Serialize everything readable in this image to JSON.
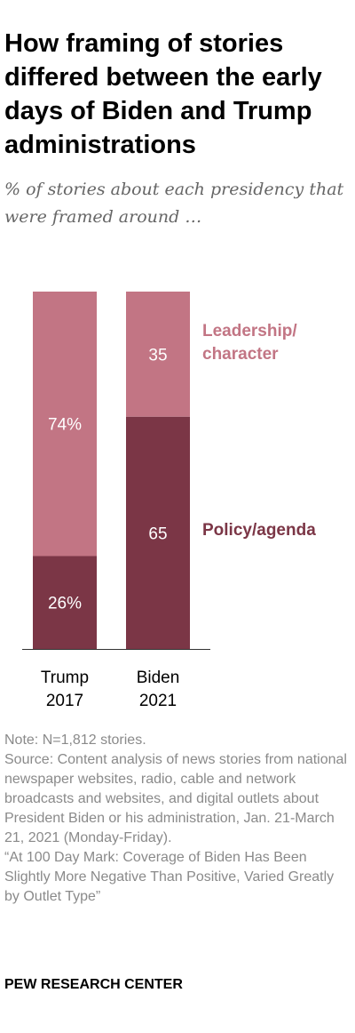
{
  "title": "How framing of stories differed between the early days of Biden and Trump administrations",
  "subtitle": "% of stories about each presidency that were framed around …",
  "chart_data": {
    "type": "bar",
    "stacked": true,
    "categories": [
      {
        "line1": "Trump",
        "line2": "2017"
      },
      {
        "line1": "Biden",
        "line2": "2021"
      }
    ],
    "series": [
      {
        "name": "Policy/agenda",
        "values": [
          26,
          65
        ],
        "labels": [
          "26%",
          "65"
        ],
        "color": "#7b3646"
      },
      {
        "name": "Leadership/ character",
        "values": [
          74,
          35
        ],
        "labels": [
          "74%",
          "35"
        ],
        "color": "#c27584"
      }
    ],
    "legend_labels": {
      "leadership": [
        "Leadership/",
        "character"
      ],
      "policy": [
        "Policy/agenda"
      ]
    },
    "ylim": [
      0,
      100
    ],
    "grid": false,
    "legend": "inline-right"
  },
  "notes": [
    "Note: N=1,812 stories.",
    "Source: Content analysis of news stories from national newspaper websites, radio, cable and network broadcasts and websites, and digital outlets about President Biden or his administration, Jan. 21-March 21, 2021 (Monday-Friday).",
    "“At 100 Day Mark: Coverage of Biden Has Been Slightly More Negative Than Positive, Varied Greatly by Outlet Type”"
  ],
  "brand": "PEW RESEARCH CENTER"
}
